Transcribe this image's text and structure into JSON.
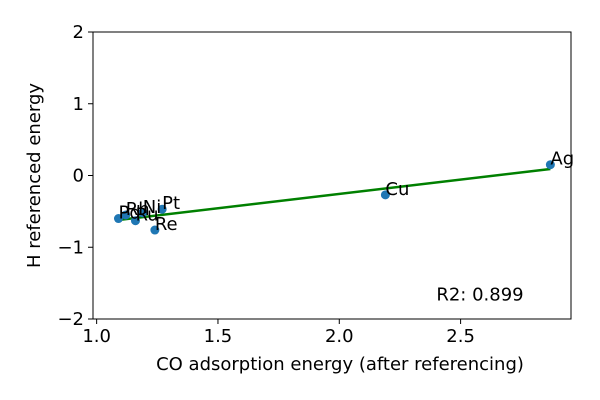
{
  "chart_data": {
    "type": "scatter",
    "title": "",
    "xlabel": "CO adsorption energy (after referencing)",
    "ylabel": "H referenced energy",
    "xlim": [
      0.985,
      2.955
    ],
    "ylim": [
      -2,
      2
    ],
    "x_ticks": [
      1.0,
      1.5,
      2.0,
      2.5
    ],
    "x_tick_labels": [
      "1.0",
      "1.5",
      "2.0",
      "2.5"
    ],
    "y_ticks": [
      -2,
      -1,
      0,
      1,
      2
    ],
    "y_tick_labels": [
      "−2",
      "−1",
      "0",
      "1",
      "2"
    ],
    "grid": false,
    "points": [
      {
        "label": "Pd",
        "x": 1.09,
        "y": -0.6
      },
      {
        "label": "Rh",
        "x": 1.12,
        "y": -0.55
      },
      {
        "label": "Ru",
        "x": 1.16,
        "y": -0.63
      },
      {
        "label": "Ni",
        "x": 1.19,
        "y": -0.52
      },
      {
        "label": "Pt",
        "x": 1.27,
        "y": -0.47
      },
      {
        "label": "Re",
        "x": 1.24,
        "y": -0.76
      },
      {
        "label": "Cu",
        "x": 2.19,
        "y": -0.27
      },
      {
        "label": "Ag",
        "x": 2.87,
        "y": 0.15
      }
    ],
    "fit_line": {
      "x": [
        1.09,
        2.87
      ],
      "y": [
        -0.62,
        0.09
      ]
    },
    "annotation": "R2: 0.899",
    "colors": {
      "points": "#1f77b4",
      "fit_line": "#008000",
      "axes": "#000000"
    }
  }
}
